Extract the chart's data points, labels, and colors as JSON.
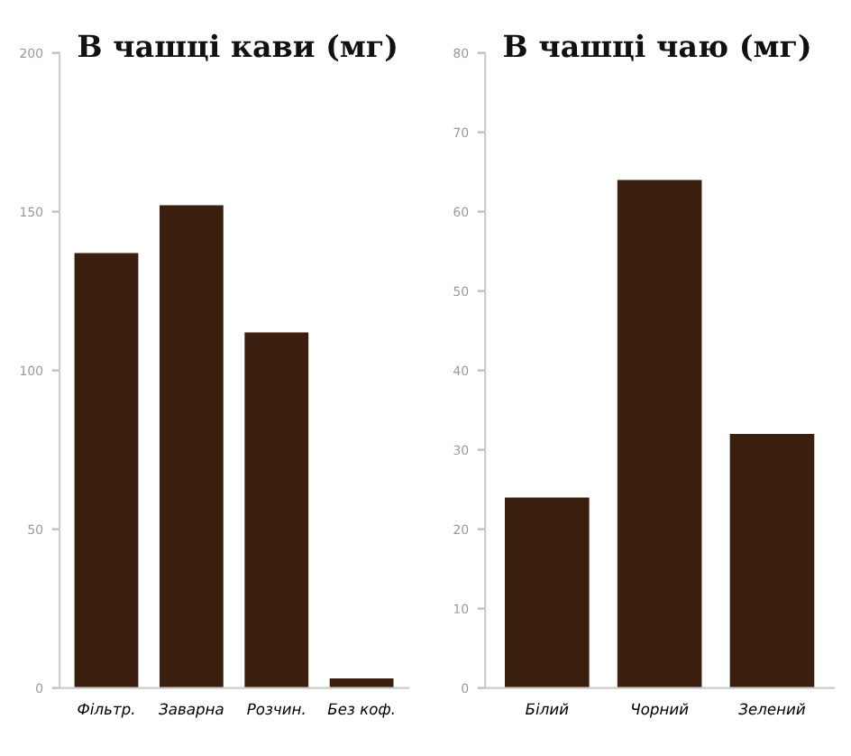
{
  "chart_data": [
    {
      "type": "bar",
      "title": "В чашці кави (мг)",
      "categories": [
        "Фільтр.",
        "Заварна",
        "Розчин.",
        "Без коф."
      ],
      "values": [
        137,
        152,
        112,
        3
      ],
      "color": "#3b1f0e",
      "ylim": [
        0,
        200
      ],
      "yticks": [
        0,
        50,
        100,
        150,
        200
      ],
      "grid": false
    },
    {
      "type": "bar",
      "title": "В чашці чаю (мг)",
      "categories": [
        "Білий",
        "Чорний",
        "Зелений"
      ],
      "values": [
        24,
        64,
        32
      ],
      "color": "#3b1f0e",
      "ylim": [
        0,
        80
      ],
      "yticks": [
        0,
        10,
        20,
        30,
        40,
        50,
        60,
        70,
        80
      ],
      "grid": false
    }
  ]
}
